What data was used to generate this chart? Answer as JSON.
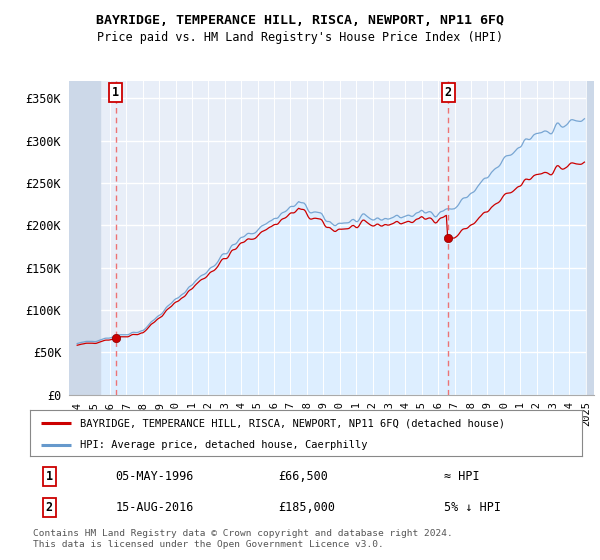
{
  "title": "BAYRIDGE, TEMPERANCE HILL, RISCA, NEWPORT, NP11 6FQ",
  "subtitle": "Price paid vs. HM Land Registry's House Price Index (HPI)",
  "ylim": [
    0,
    370000
  ],
  "yticks": [
    0,
    50000,
    100000,
    150000,
    200000,
    250000,
    300000,
    350000
  ],
  "ytick_labels": [
    "£0",
    "£50K",
    "£100K",
    "£150K",
    "£200K",
    "£250K",
    "£300K",
    "£350K"
  ],
  "sale1_x": 1996.35,
  "sale1_y": 66500,
  "sale1_label": "1",
  "sale2_x": 2016.62,
  "sale2_y": 185000,
  "sale2_label": "2",
  "legend_line1": "BAYRIDGE, TEMPERANCE HILL, RISCA, NEWPORT, NP11 6FQ (detached house)",
  "legend_line2": "HPI: Average price, detached house, Caerphilly",
  "table_row1": [
    "1",
    "05-MAY-1996",
    "£66,500",
    "≈ HPI"
  ],
  "table_row2": [
    "2",
    "15-AUG-2016",
    "£185,000",
    "5% ↓ HPI"
  ],
  "footnote": "Contains HM Land Registry data © Crown copyright and database right 2024.\nThis data is licensed under the Open Government Licence v3.0.",
  "line_color_red": "#cc0000",
  "line_color_blue": "#6699cc",
  "hpi_fill_color": "#ddeeff",
  "background_plot": "#e8eef8",
  "grid_color": "#c8d4e8",
  "dashed_line_color": "#ee6666",
  "hatch_color": "#c8d4e8",
  "xlim_left": 1993.5,
  "xlim_right": 2025.5,
  "hatch_left_end": 1995.42,
  "hatch_right_start": 2025.08
}
